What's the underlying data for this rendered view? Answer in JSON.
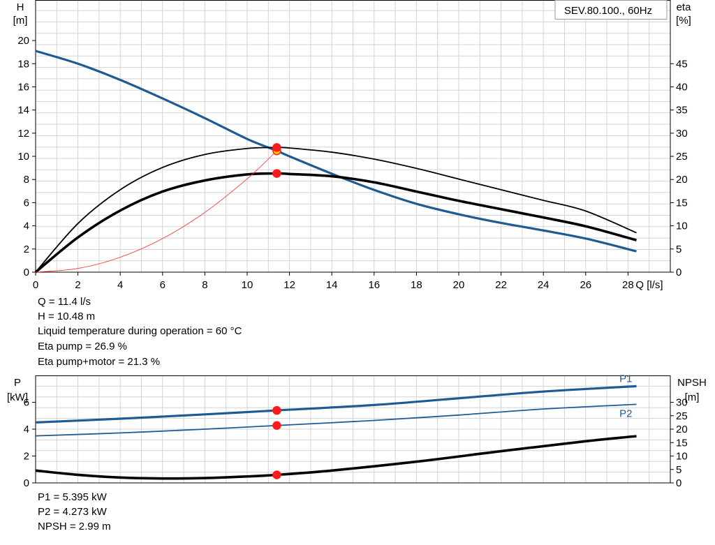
{
  "chart_data": [
    {
      "type": "line",
      "title": "SEV.80.100., 60Hz",
      "xlabel": "Q [l/s]",
      "ylabel_left": [
        "H",
        "[m]"
      ],
      "ylabel_right": [
        "eta",
        "[%]"
      ],
      "xlim": [
        0,
        30
      ],
      "ylim_left": [
        0,
        23.5
      ],
      "ylim_right": [
        0,
        58.75
      ],
      "x_ticks": [
        0,
        2,
        4,
        6,
        8,
        10,
        12,
        14,
        16,
        18,
        20,
        22,
        24,
        26,
        28
      ],
      "y_ticks_left": [
        0,
        2,
        4,
        6,
        8,
        10,
        12,
        14,
        16,
        18,
        20
      ],
      "y_ticks_right": [
        0,
        5,
        10,
        15,
        20,
        25,
        30,
        35,
        40,
        45
      ],
      "grid": true,
      "series": [
        {
          "key": "head",
          "axis": "left",
          "color": "#1f5b93",
          "width": 3.2,
          "x": [
            0,
            2,
            4,
            6,
            8,
            10,
            11.4,
            12,
            14,
            16,
            18,
            20,
            22,
            24,
            26,
            28.4
          ],
          "y": [
            19.1,
            18.0,
            16.6,
            15.0,
            13.3,
            11.5,
            10.48,
            10.0,
            8.5,
            7.1,
            5.9,
            5.0,
            4.25,
            3.6,
            2.9,
            1.8
          ]
        },
        {
          "key": "eta-pump",
          "axis": "right",
          "color": "#000000",
          "width": 1.8,
          "x": [
            0,
            2,
            4,
            6,
            8,
            10,
            11.4,
            12,
            14,
            16,
            18,
            20,
            22,
            24,
            26,
            28.4
          ],
          "y": [
            0,
            10.5,
            17.8,
            22.6,
            25.4,
            26.7,
            26.9,
            26.8,
            25.9,
            24.4,
            22.4,
            20.1,
            17.8,
            15.5,
            13.2,
            8.5
          ]
        },
        {
          "key": "eta-pump-motor",
          "axis": "right",
          "color": "#000000",
          "width": 3.6,
          "x": [
            0,
            2,
            4,
            6,
            8,
            10,
            11.4,
            12,
            14,
            16,
            18,
            20,
            22,
            24,
            26,
            28.4
          ],
          "y": [
            0,
            7.5,
            13.3,
            17.4,
            19.8,
            21.1,
            21.3,
            21.2,
            20.7,
            19.4,
            17.4,
            15.4,
            13.6,
            11.8,
            9.9,
            6.9
          ]
        },
        {
          "key": "system-curve",
          "axis": "left",
          "color": "#ff3030",
          "width": 0.8,
          "x": [
            0,
            2,
            4,
            6,
            8,
            10,
            11.4
          ],
          "y": [
            0,
            0.32,
            1.29,
            2.9,
            5.16,
            8.06,
            10.48
          ]
        }
      ],
      "points": [
        {
          "key": "op-head",
          "x": 11.4,
          "y": 10.48,
          "axis": "left",
          "fill": "#ffd200",
          "stroke": "#ff1a1a"
        },
        {
          "key": "op-eta-pump",
          "x": 11.4,
          "y": 26.9,
          "axis": "right",
          "fill": "#ff1a1a",
          "stroke": "#ff1a1a"
        },
        {
          "key": "op-eta-pump-motor",
          "x": 11.4,
          "y": 21.3,
          "axis": "right",
          "fill": "#ff1a1a",
          "stroke": "#ff1a1a"
        }
      ]
    },
    {
      "type": "line",
      "ylabel_left": [
        "P",
        "[kW]"
      ],
      "ylabel_right": [
        "NPSH",
        "[m]"
      ],
      "xlim": [
        0,
        30
      ],
      "ylim_left": [
        0,
        8
      ],
      "ylim_right": [
        0,
        40
      ],
      "y_ticks_left": [
        0,
        2,
        4,
        6
      ],
      "y_ticks_right": [
        0,
        5,
        10,
        15,
        20,
        25,
        30
      ],
      "grid": true,
      "series": [
        {
          "key": "p1",
          "name": "P1",
          "axis": "left",
          "color": "#1f5b93",
          "width": 3.2,
          "x": [
            0,
            4,
            8,
            11.4,
            16,
            20,
            24,
            28.4
          ],
          "y": [
            4.5,
            4.78,
            5.1,
            5.395,
            5.8,
            6.3,
            6.8,
            7.2
          ]
        },
        {
          "key": "p2",
          "name": "P2",
          "axis": "left",
          "color": "#1f5b93",
          "width": 1.8,
          "x": [
            0,
            4,
            8,
            11.4,
            16,
            20,
            24,
            28.4
          ],
          "y": [
            3.5,
            3.72,
            4.0,
            4.273,
            4.65,
            5.05,
            5.5,
            5.85
          ]
        },
        {
          "key": "npsh",
          "axis": "right",
          "color": "#000000",
          "width": 3.6,
          "x": [
            0,
            2,
            4,
            6,
            8,
            10,
            11.4,
            14,
            18,
            22,
            26,
            28.4
          ],
          "y": [
            4.6,
            3.0,
            2.0,
            1.65,
            1.8,
            2.4,
            2.99,
            4.6,
            7.9,
            11.8,
            15.5,
            17.4
          ]
        }
      ],
      "points": [
        {
          "key": "op-p1",
          "x": 11.4,
          "y": 5.395,
          "axis": "left",
          "fill": "#ff1a1a",
          "stroke": "#ff1a1a"
        },
        {
          "key": "op-p2",
          "x": 11.4,
          "y": 4.273,
          "axis": "left",
          "fill": "#ff1a1a",
          "stroke": "#ff1a1a"
        },
        {
          "key": "op-npsh",
          "x": 11.4,
          "y": 2.99,
          "axis": "right",
          "fill": "#ff1a1a",
          "stroke": "#ff1a1a"
        }
      ]
    }
  ],
  "top_info": [
    "Q = 11.4 l/s",
    "H = 10.48 m",
    "Liquid temperature during operation = 60 °C",
    "Eta pump = 26.9 %",
    "Eta pump+motor = 21.3 %"
  ],
  "bottom_info": [
    "P1 = 5.395 kW",
    "P2 = 4.273 kW",
    "NPSH = 2.99 m"
  ]
}
